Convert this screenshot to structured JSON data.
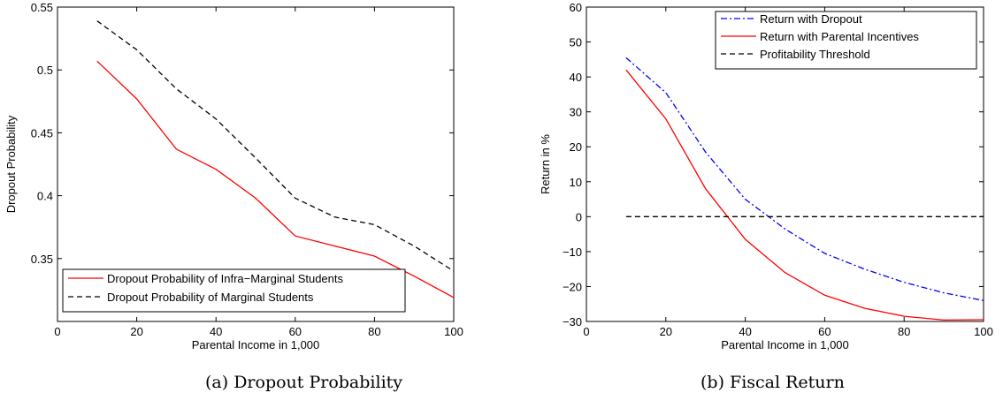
{
  "chart_data": [
    {
      "type": "line",
      "title": "",
      "caption": "(a) Dropout Probability",
      "xlabel": "Parental Income in 1,000",
      "ylabel": "Dropout Probability",
      "xlim": [
        0,
        100
      ],
      "ylim": [
        0.3,
        0.55
      ],
      "xticks": [
        0,
        20,
        40,
        60,
        80,
        100
      ],
      "xtick_labels": [
        "0",
        "20",
        "40",
        "60",
        "80",
        "100"
      ],
      "yticks": [
        0.35,
        0.4,
        0.45,
        0.5,
        0.55
      ],
      "ytick_labels": [
        "0.35",
        "0.4",
        "0.45",
        "0.5",
        "0.55"
      ],
      "grid": false,
      "legend_position": "bottom-left",
      "series": [
        {
          "name": "Dropout Probability of Infra−Marginal Students",
          "color": "#ff0000",
          "dash": "solid",
          "x": [
            10,
            20,
            30,
            40,
            50,
            60,
            70,
            80,
            90,
            100
          ],
          "y": [
            0.507,
            0.477,
            0.437,
            0.421,
            0.398,
            0.368,
            0.36,
            0.352,
            0.336,
            0.319
          ]
        },
        {
          "name": "Dropout Probability of Marginal Students",
          "color": "#000000",
          "dash": "dashed",
          "x": [
            10,
            20,
            30,
            40,
            50,
            60,
            70,
            80,
            90,
            100
          ],
          "y": [
            0.539,
            0.516,
            0.485,
            0.461,
            0.43,
            0.398,
            0.383,
            0.377,
            0.36,
            0.34
          ]
        }
      ]
    },
    {
      "type": "line",
      "title": "",
      "caption": "(b) Fiscal Return",
      "xlabel": "Parental Income in 1,000",
      "ylabel": "Return in %",
      "xlim": [
        0,
        100
      ],
      "ylim": [
        -30,
        60
      ],
      "xticks": [
        0,
        20,
        40,
        60,
        80,
        100
      ],
      "xtick_labels": [
        "0",
        "20",
        "40",
        "60",
        "80",
        "100"
      ],
      "yticks": [
        -30,
        -20,
        -10,
        0,
        10,
        20,
        30,
        40,
        50,
        60
      ],
      "ytick_labels": [
        "−30",
        "−20",
        "−10",
        "0",
        "10",
        "20",
        "30",
        "40",
        "50",
        "60"
      ],
      "grid": false,
      "legend_position": "top-right",
      "series": [
        {
          "name": "Return with Dropout",
          "color": "#0000ff",
          "dash": "dashdot",
          "x": [
            10,
            20,
            30,
            40,
            50,
            60,
            70,
            80,
            90,
            100
          ],
          "y": [
            45.5,
            35.5,
            18.5,
            5,
            -3.5,
            -10.5,
            -15,
            -18.8,
            -21.8,
            -24
          ]
        },
        {
          "name": "Return with Parental Incentives",
          "color": "#ff0000",
          "dash": "solid",
          "x": [
            10,
            20,
            30,
            40,
            50,
            60,
            70,
            80,
            90,
            100
          ],
          "y": [
            42,
            28,
            8,
            -6.5,
            -16,
            -22.5,
            -26.2,
            -28.5,
            -29.6,
            -29.5
          ]
        },
        {
          "name": "Profitability Threshold",
          "color": "#000000",
          "dash": "dashed",
          "x": [
            10,
            100
          ],
          "y": [
            0,
            0
          ]
        }
      ]
    }
  ]
}
